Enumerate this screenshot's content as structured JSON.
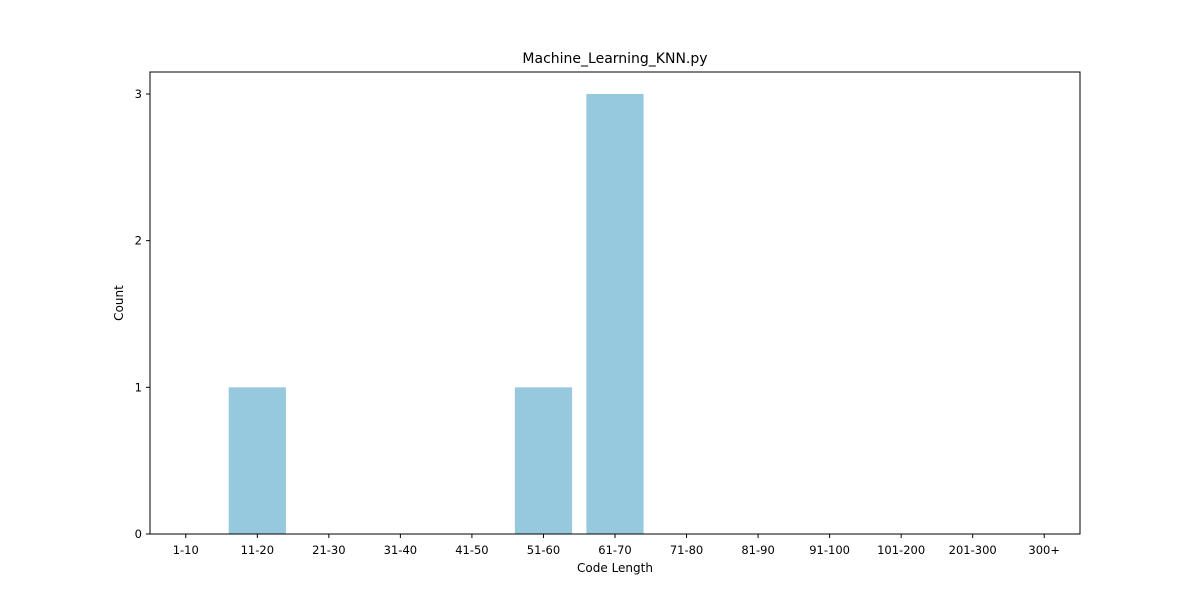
{
  "chart_data": {
    "type": "bar",
    "title": "Machine_Learning_KNN.py",
    "xlabel": "Code Length",
    "ylabel": "Count",
    "categories": [
      "1-10",
      "11-20",
      "21-30",
      "31-40",
      "41-50",
      "51-60",
      "61-70",
      "71-80",
      "81-90",
      "91-100",
      "101-200",
      "201-300",
      "300+"
    ],
    "values": [
      0,
      1,
      0,
      0,
      0,
      1,
      3,
      0,
      0,
      0,
      0,
      0,
      0
    ],
    "ylim": [
      0,
      3.15
    ],
    "yticks": [
      0,
      1,
      2,
      3
    ],
    "bar_color": "#96c9dd",
    "grid": false,
    "legend": "none"
  }
}
